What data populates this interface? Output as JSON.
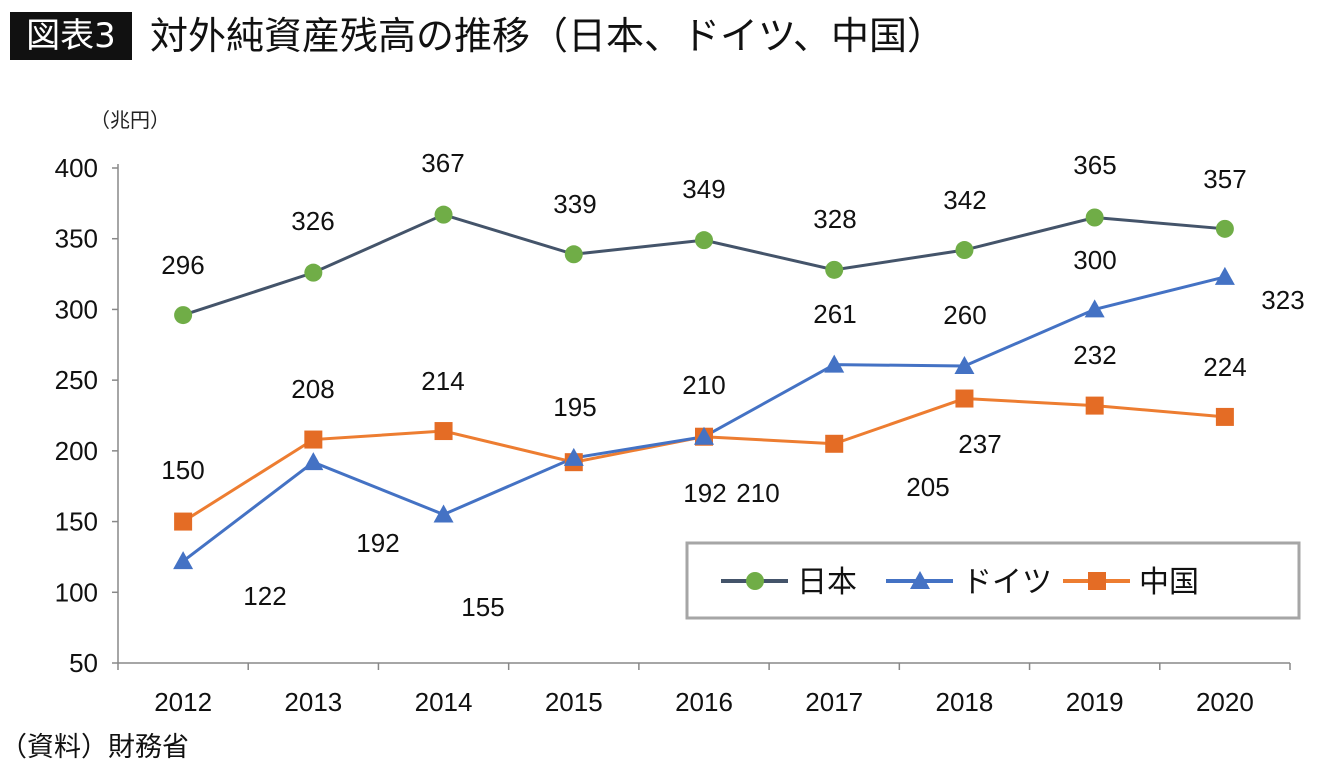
{
  "header": {
    "badge": "図表3",
    "title": "対外純資産残高の推移（日本、ドイツ、中国）"
  },
  "footer": {
    "source": "（資料）財務省"
  },
  "chart_data": {
    "type": "line",
    "title": "対外純資産残高の推移（日本、ドイツ、中国）",
    "ylabel": "（兆円）",
    "xlabel": "",
    "categories": [
      "2012",
      "2013",
      "2014",
      "2015",
      "2016",
      "2017",
      "2018",
      "2019",
      "2020"
    ],
    "ylim": [
      50,
      400
    ],
    "yticks": [
      50,
      100,
      150,
      200,
      250,
      300,
      350,
      400
    ],
    "grid": false,
    "legend_position": "bottom-right",
    "series": [
      {
        "name": "日本",
        "values": [
          296,
          326,
          367,
          339,
          349,
          328,
          342,
          365,
          357
        ],
        "line_color": "#44546a",
        "marker_color": "#70ad47",
        "marker": "circle"
      },
      {
        "name": "ドイツ",
        "values": [
          122,
          192,
          155,
          195,
          210,
          261,
          260,
          300,
          323
        ],
        "line_color": "#4472c4",
        "marker_color": "#4472c4",
        "marker": "triangle"
      },
      {
        "name": "中国",
        "values": [
          150,
          208,
          214,
          192,
          210,
          205,
          237,
          232,
          224
        ],
        "line_color": "#ed7d31",
        "marker_color": "#e46c25",
        "marker": "square"
      }
    ]
  }
}
